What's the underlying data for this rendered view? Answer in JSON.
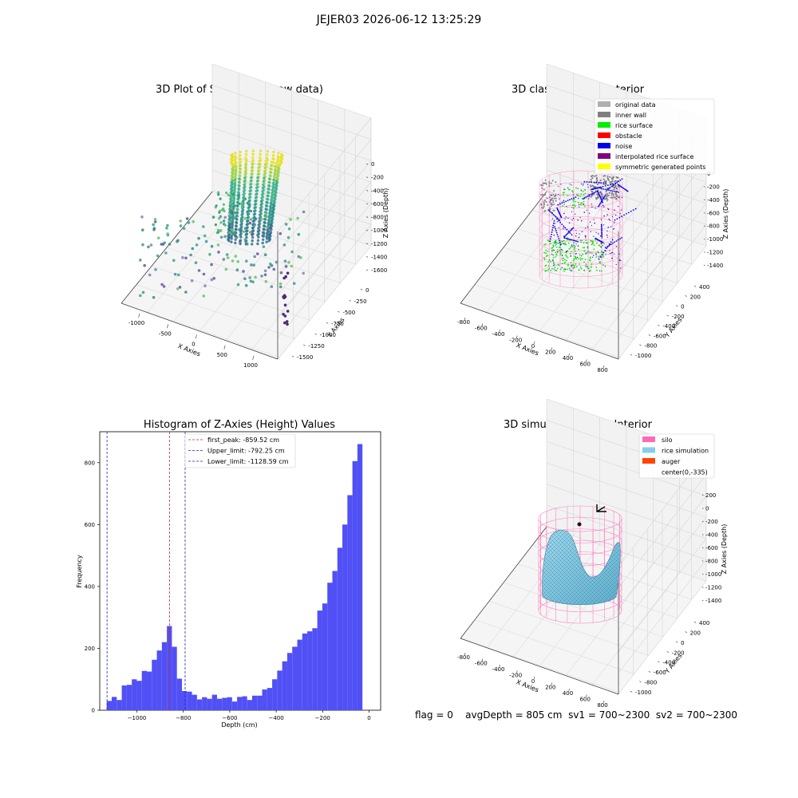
{
  "figure": {
    "suptitle": "JEJER03 2026-06-12 13:25:29",
    "footer": {
      "flag": "flag = 0",
      "avg_depth": "avgDepth = 805 cm",
      "sv1": "sv1 = 700~2300",
      "sv2": "sv2 = 700~2300"
    }
  },
  "colors": {
    "histogram_bar": "#5050f5",
    "first_peak_line": "#e02020",
    "limit_line": "#2020c0",
    "silo": "#ff69b4",
    "rice_simulation": "#87ceeb",
    "auger": "#ff4500",
    "original_data": "#b0b0b0",
    "inner_wall": "#808080",
    "rice_surface": "#00ee00",
    "obstacle": "#ff0000",
    "noise": "#0000ee",
    "interpolated_rice_surface": "#800080",
    "symmetric_generated_points": "#ffff00"
  },
  "chart_data": [
    {
      "type": "scatter",
      "title": "3D Plot of Silo Interior(row data)",
      "xlabel": "X Axies",
      "ylabel": "Y Axies",
      "zlabel": "Z Axies (Depth)",
      "xticks": [
        "-1000",
        "-500",
        "0",
        "500",
        "1000"
      ],
      "yticks": [
        "0",
        "-250",
        "-500",
        "-750",
        "-1000",
        "-1250",
        "-1500"
      ],
      "zticks": [
        "0",
        "-200",
        "-400",
        "-600",
        "-800",
        "-1000",
        "-1200",
        "-1400",
        "-1600"
      ],
      "xlim": [
        -1150,
        1150
      ],
      "ylim": [
        -1600,
        100
      ],
      "zlim": [
        -1650,
        50
      ]
    },
    {
      "type": "scatter",
      "title": "3D classify of Silo Interior",
      "xlabel": "X Axies",
      "ylabel": "Y Axies",
      "zlabel": "Z Axies (Depth)",
      "xticks": [
        "-800",
        "-600",
        "-400",
        "-200",
        "0",
        "200",
        "400",
        "600",
        "800"
      ],
      "yticks": [
        "400",
        "200",
        "0",
        "-200",
        "-400",
        "-600",
        "-800",
        "-1000"
      ],
      "zticks": [
        "0",
        "-200",
        "-400",
        "-600",
        "-800",
        "-1000",
        "-1200",
        "-1400"
      ],
      "legend_position": "top-right",
      "legend": [
        "original data",
        "inner wall",
        "rice surface",
        "obstacle",
        "noise",
        "interpolated rice surface",
        "symmetric generated points"
      ]
    },
    {
      "type": "bar",
      "title": "Histogram of Z-Axies (Height) Values",
      "xlabel": "Depth (cm)",
      "ylabel": "Frequency",
      "xlim": [
        -1160,
        50
      ],
      "ylim": [
        0,
        900
      ],
      "xticks": [
        -1000,
        -800,
        -600,
        -400,
        -200,
        0
      ],
      "yticks": [
        0,
        200,
        400,
        600,
        800
      ],
      "bin_start": -1130,
      "bin_width": 21.6,
      "values": [
        30,
        43,
        33,
        80,
        82,
        100,
        95,
        127,
        125,
        163,
        193,
        220,
        272,
        205,
        102,
        62,
        60,
        50,
        35,
        42,
        37,
        50,
        37,
        40,
        42,
        28,
        43,
        45,
        33,
        47,
        47,
        67,
        72,
        100,
        128,
        158,
        185,
        205,
        228,
        248,
        255,
        265,
        322,
        345,
        412,
        450,
        525,
        600,
        695,
        805,
        860
      ],
      "vlines": [
        {
          "label": "first_peak: -859.52 cm",
          "x": -859.52
        },
        {
          "label": "Upper_limit: -792.25 cm",
          "x": -792.25
        },
        {
          "label": "Lower_limit: -1128.59 cm",
          "x": -1128.59
        }
      ],
      "legend_position": "top-center"
    },
    {
      "type": "area",
      "title": "3D simulation of Silo Interior",
      "xlabel": "X Axies",
      "ylabel": "Y Axies",
      "zlabel": "Z Axies (Depth)",
      "xticks": [
        "-800",
        "-600",
        "-400",
        "-200",
        "0",
        "200",
        "400",
        "600",
        "800"
      ],
      "yticks": [
        "400",
        "200",
        "0",
        "-200",
        "-400",
        "-600",
        "-800",
        "-1000"
      ],
      "zticks": [
        "200",
        "0",
        "-200",
        "-400",
        "-600",
        "-800",
        "-1000",
        "-1200",
        "-1400"
      ],
      "legend_position": "top-right",
      "legend": [
        "silo",
        "rice simulation",
        "auger",
        "center(0,-335)"
      ]
    }
  ]
}
